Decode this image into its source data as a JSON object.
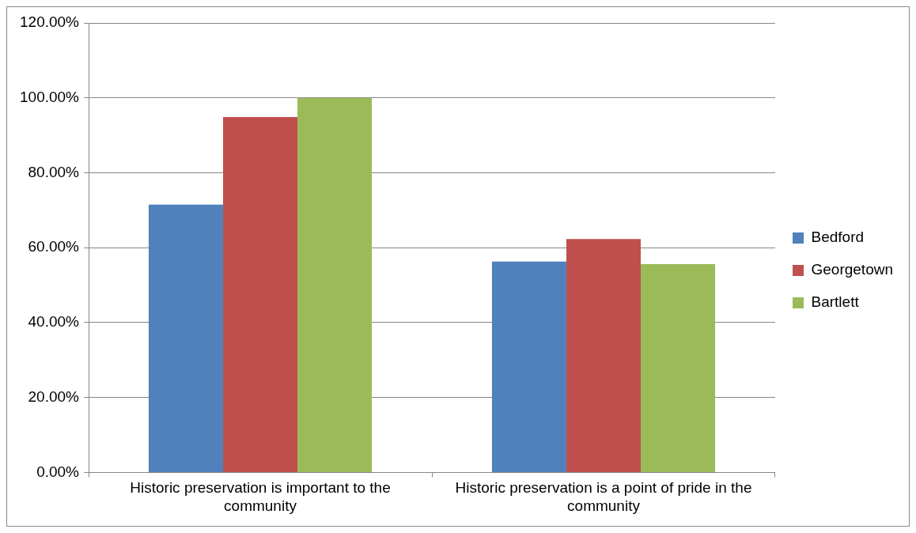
{
  "chart_data": {
    "type": "bar",
    "categories": [
      "Historic preservation is important to the community",
      "Historic preservation is a point of pride in the community"
    ],
    "series": [
      {
        "name": "Bedford",
        "color": "#4f81bd",
        "values": [
          71.5,
          56.3
        ]
      },
      {
        "name": "Georgetown",
        "color": "#c0504d",
        "values": [
          94.9,
          62.3
        ]
      },
      {
        "name": "Bartlett",
        "color": "#9bbb59",
        "values": [
          100,
          55.6
        ]
      }
    ],
    "ylim": [
      0,
      120
    ],
    "yticks": [
      {
        "value": 0,
        "label": "0.00%"
      },
      {
        "value": 20,
        "label": "20.00%"
      },
      {
        "value": 40,
        "label": "40.00%"
      },
      {
        "value": 60,
        "label": "60.00%"
      },
      {
        "value": 80,
        "label": "80.00%"
      },
      {
        "value": 100,
        "label": "100.00%"
      },
      {
        "value": 120,
        "label": "120.00%"
      }
    ],
    "grid": "y",
    "legend": "right"
  }
}
